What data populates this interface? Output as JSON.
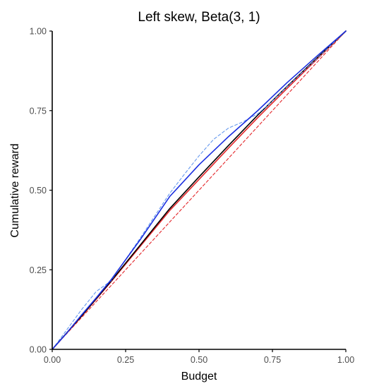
{
  "chart_data": {
    "type": "line",
    "title": "Left skew, Beta(3, 1)",
    "xlabel": "Budget",
    "ylabel": "Cumulative reward",
    "xlim": [
      0,
      1
    ],
    "ylim": [
      0,
      1
    ],
    "x_ticks": [
      "0.00",
      "0.25",
      "0.50",
      "0.75",
      "1.00"
    ],
    "y_ticks": [
      "0.00",
      "0.25",
      "0.50",
      "0.75",
      "1.00"
    ],
    "grid": false,
    "legend": "none",
    "series": [
      {
        "color": "#e3262a",
        "dash": "dashed",
        "x": [
          0,
          1
        ],
        "y": [
          0,
          1
        ]
      },
      {
        "color": "#e3262a",
        "dash": "solid",
        "x": [
          0,
          0.1,
          0.2,
          0.3,
          0.4,
          0.5,
          0.6,
          0.7,
          0.8,
          0.9,
          1.0
        ],
        "y": [
          0,
          0.104,
          0.212,
          0.324,
          0.436,
          0.534,
          0.632,
          0.728,
          0.82,
          0.91,
          1.0
        ]
      },
      {
        "color": "#000000",
        "dash": "solid",
        "x": [
          0,
          0.1,
          0.2,
          0.3,
          0.4,
          0.5,
          0.6,
          0.7,
          0.8,
          0.9,
          1.0
        ],
        "y": [
          0,
          0.105,
          0.214,
          0.328,
          0.442,
          0.542,
          0.64,
          0.736,
          0.826,
          0.914,
          1.0
        ]
      },
      {
        "color": "#6699ee",
        "dash": "dashed",
        "x": [
          0,
          0.05,
          0.1,
          0.15,
          0.2,
          0.3,
          0.4,
          0.45,
          0.5,
          0.55,
          0.6,
          0.65,
          0.7,
          0.75,
          0.8,
          0.9,
          1.0
        ],
        "y": [
          0,
          0.062,
          0.125,
          0.182,
          0.215,
          0.35,
          0.49,
          0.55,
          0.608,
          0.66,
          0.695,
          0.715,
          0.74,
          0.78,
          0.825,
          0.912,
          1.0
        ]
      },
      {
        "color": "#1a2fe0",
        "dash": "solid",
        "x": [
          0,
          0.05,
          0.1,
          0.15,
          0.2,
          0.3,
          0.4,
          0.5,
          0.6,
          0.7,
          0.8,
          0.9,
          1.0
        ],
        "y": [
          0,
          0.052,
          0.108,
          0.162,
          0.218,
          0.345,
          0.48,
          0.58,
          0.668,
          0.75,
          0.838,
          0.92,
          1.0
        ]
      }
    ]
  }
}
